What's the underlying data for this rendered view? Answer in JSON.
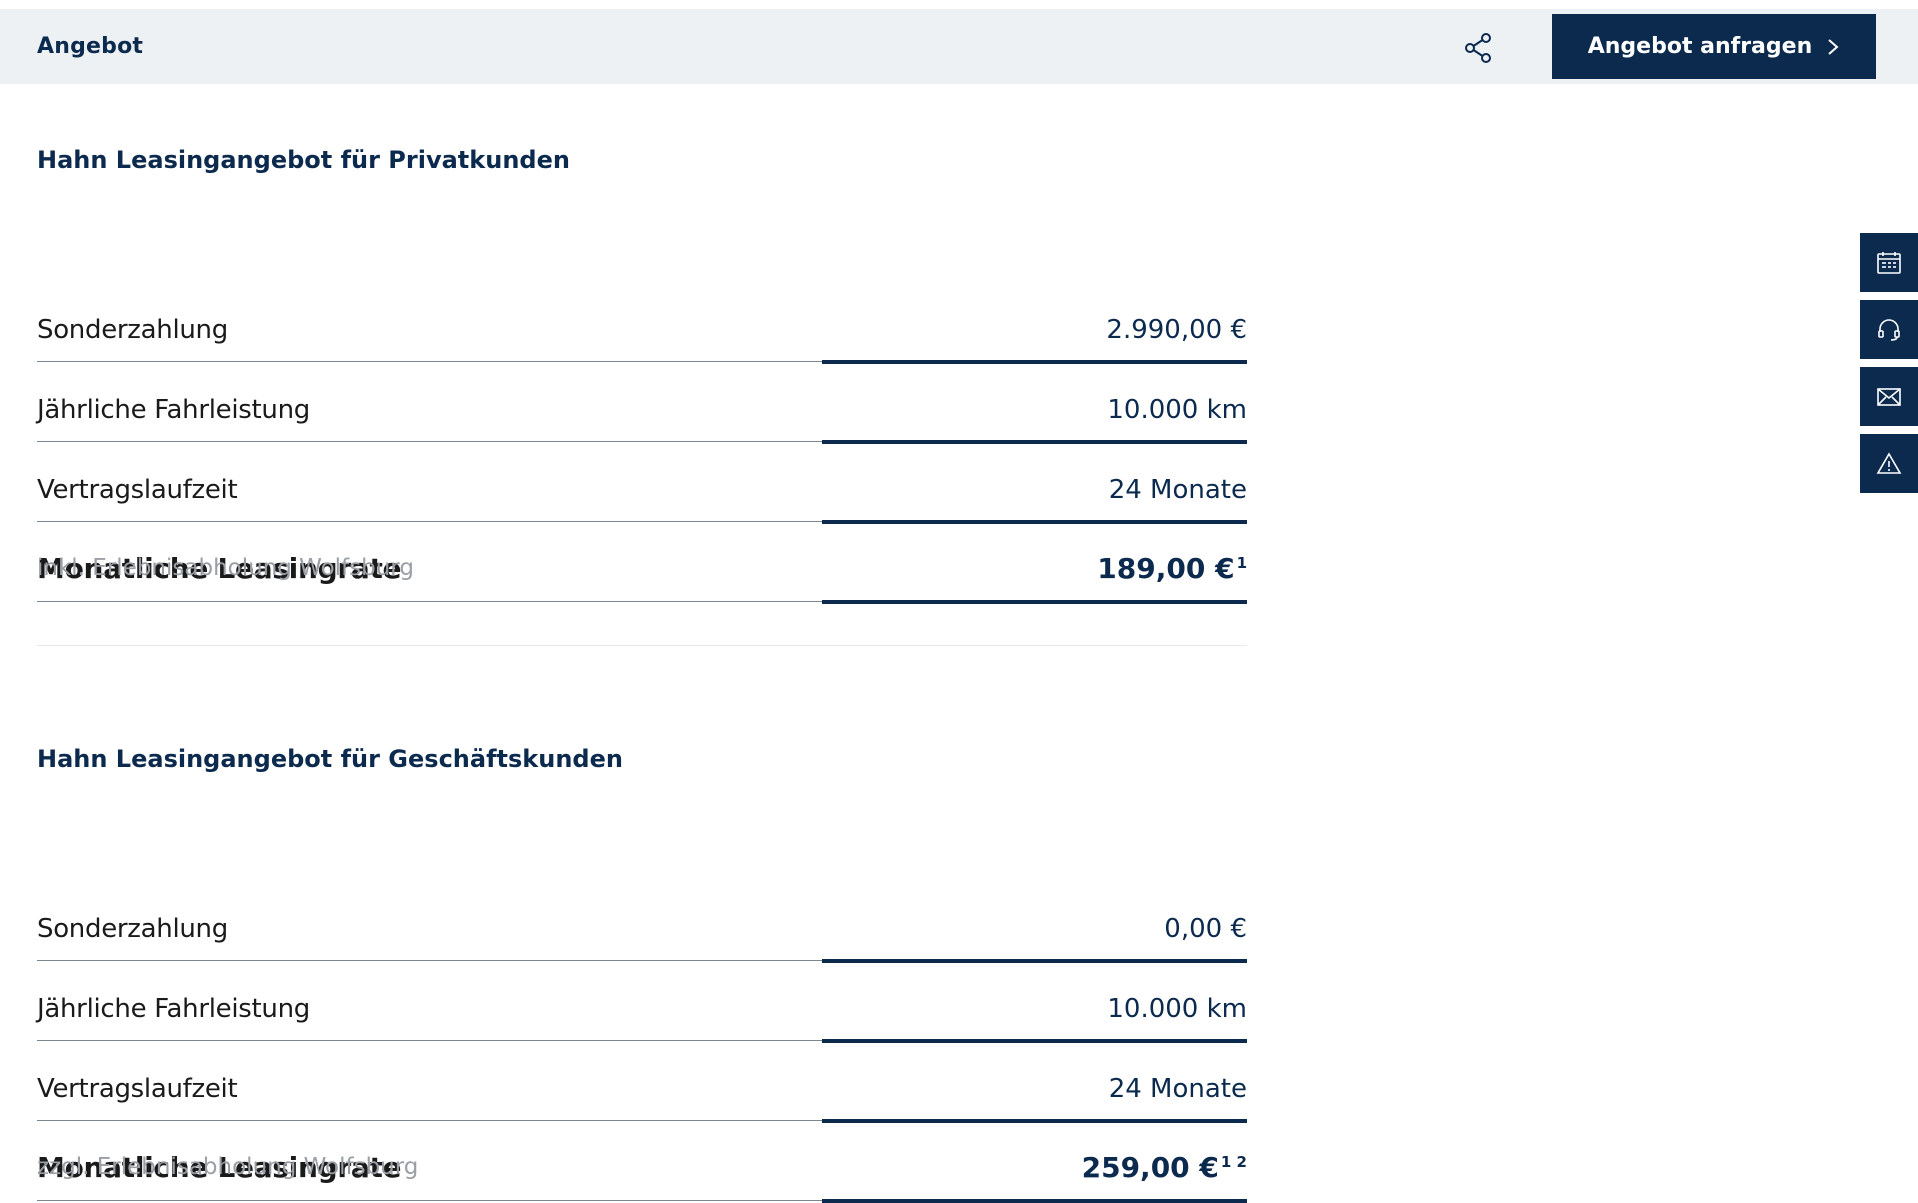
{
  "header": {
    "title": "Angebot",
    "share_icon": "share-icon",
    "cta_label": "Angebot anfragen"
  },
  "offers": [
    {
      "title": "Hahn Leasingangebot für Privatkunden",
      "rows": [
        {
          "label": "Sonderzahlung",
          "value": "2.990,00 €"
        },
        {
          "label": "Jährliche Fahrleistung",
          "value": "10.000 km"
        },
        {
          "label": "Vertragslaufzeit",
          "value": "24 Monate"
        }
      ],
      "total": {
        "label": "Monatliche Leasingrate",
        "value": "189,00 €",
        "footnote": "1"
      },
      "note": "inkl. Erlebnisabholung Wolfsburg"
    },
    {
      "title": "Hahn Leasingangebot für Geschäftskunden",
      "rows": [
        {
          "label": "Sonderzahlung",
          "value": "0,00 €"
        },
        {
          "label": "Jährliche Fahrleistung",
          "value": "10.000 km"
        },
        {
          "label": "Vertragslaufzeit",
          "value": "24 Monate"
        }
      ],
      "total": {
        "label": "Monatliche Leasingrate",
        "value": "259,00 €",
        "footnote": "1 2"
      },
      "note": "zzgl. Erlebnisabholung Wolfsburg"
    }
  ],
  "sidebar": {
    "icons": [
      "calendar-icon",
      "headset-icon",
      "mail-icon",
      "warning-icon"
    ]
  },
  "colors": {
    "primary": "#0b2a4e",
    "header_bg": "#eef1f4",
    "note_text": "#9a9fa6"
  }
}
